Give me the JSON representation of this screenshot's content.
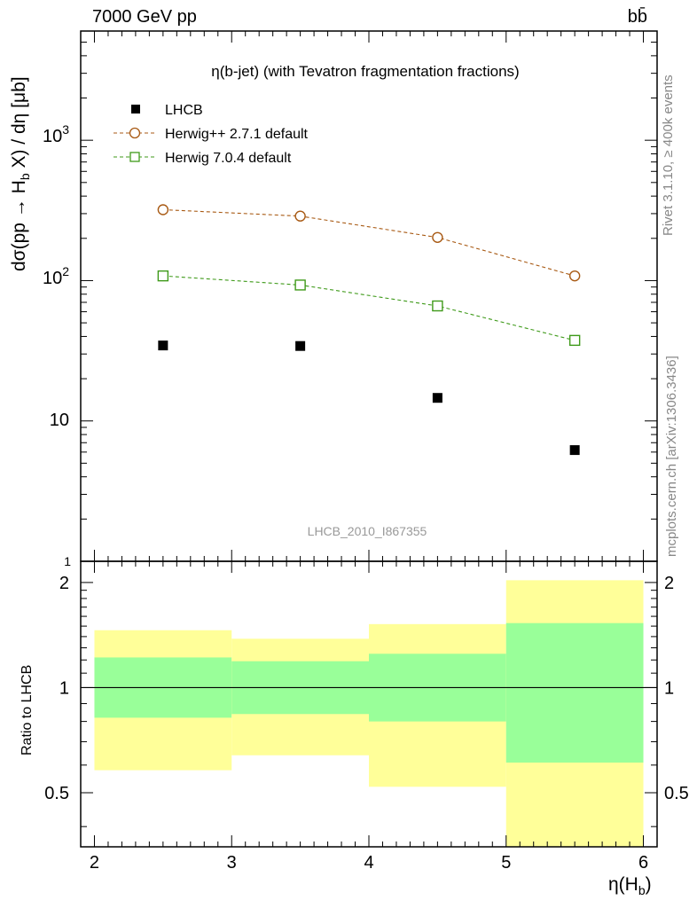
{
  "header": {
    "energy": "7000 GeV pp",
    "process": "bb̄"
  },
  "side": {
    "rivet": "Rivet 3.1.10, ≥ 400k events",
    "mcplots": "mcplots.cern.ch [arXiv:1306.3436]"
  },
  "labels": {
    "main_ylabel": "dσ(pp → H_b X) / dη [μb]",
    "ratio_ylabel": "Ratio to LHCB",
    "xlabel": "η(H_b)"
  },
  "chart_data": [
    {
      "type": "scatter",
      "title": "η(b-jet) (with Tevatron fragmentation fractions)",
      "analysis": "LHCB_2010_I867355",
      "yscale": "log",
      "ylim": [
        1,
        6000
      ],
      "xlim": [
        1.9,
        6.1
      ],
      "x": [
        2.5,
        3.5,
        4.5,
        5.5
      ],
      "y_tick_labels": [
        "10",
        "10²",
        "10³"
      ],
      "legend_position": "top-left",
      "series": [
        {
          "name": "LHCB",
          "marker": "square-filled",
          "color": "#000000",
          "values": [
            34.5,
            34.2,
            14.6,
            6.2
          ]
        },
        {
          "name": "Herwig++ 2.7.1 default",
          "marker": "circle-open",
          "color": "#a85a14",
          "values": [
            320,
            288,
            203,
            108
          ]
        },
        {
          "name": "Herwig 7.0.4 default",
          "marker": "square-open",
          "color": "#3f9a1a",
          "values": [
            108,
            93,
            66,
            37.5
          ]
        }
      ]
    },
    {
      "type": "area",
      "ylabel": "Ratio to LHCB",
      "ylim": [
        0.35,
        2.3
      ],
      "xlim": [
        1.9,
        6.1
      ],
      "x_ticks": [
        "2",
        "3",
        "4",
        "5",
        "6"
      ],
      "y_ticks": [
        "0.5",
        "1",
        "2"
      ],
      "reference_line": 1,
      "bins": [
        {
          "lo": 2,
          "hi": 3,
          "inner": [
            0.82,
            1.22
          ],
          "outer": [
            0.58,
            1.46
          ]
        },
        {
          "lo": 3,
          "hi": 4,
          "inner": [
            0.84,
            1.19
          ],
          "outer": [
            0.64,
            1.38
          ]
        },
        {
          "lo": 4,
          "hi": 5,
          "inner": [
            0.8,
            1.25
          ],
          "outer": [
            0.52,
            1.52
          ]
        },
        {
          "lo": 5,
          "hi": 6,
          "inner": [
            0.61,
            1.53
          ],
          "outer": [
            0.35,
            2.03
          ]
        }
      ],
      "colors": {
        "inner": "#99ff99",
        "outer": "#ffff99"
      }
    }
  ]
}
